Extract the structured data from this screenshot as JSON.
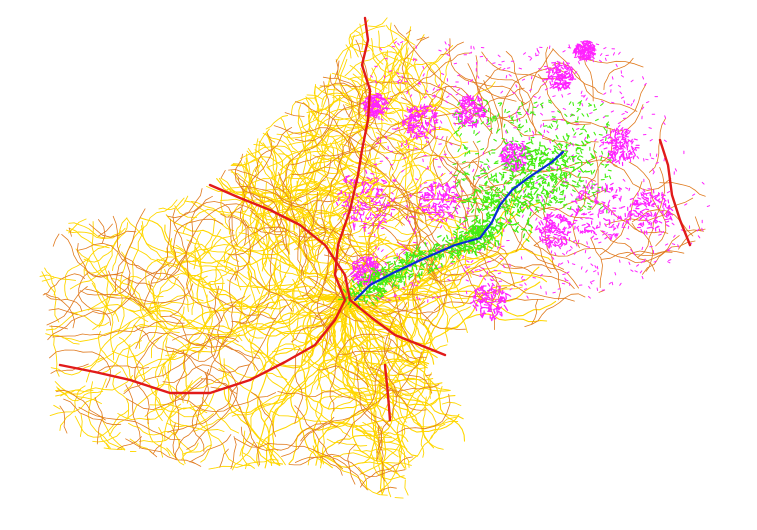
{
  "map": {
    "background": "#ffffff",
    "legend_visible": false,
    "layers": [
      {
        "name": "minor-roads-yellow",
        "color": "#ffd700"
      },
      {
        "name": "secondary-roads-orange",
        "color": "#e07a1e"
      },
      {
        "name": "highways-red",
        "color": "#e11a1a"
      },
      {
        "name": "urban-areas-magenta",
        "color": "#ff22ff"
      },
      {
        "name": "region-green",
        "color": "#44ee11"
      },
      {
        "name": "route-blue",
        "color": "#0a2bd6"
      }
    ]
  }
}
